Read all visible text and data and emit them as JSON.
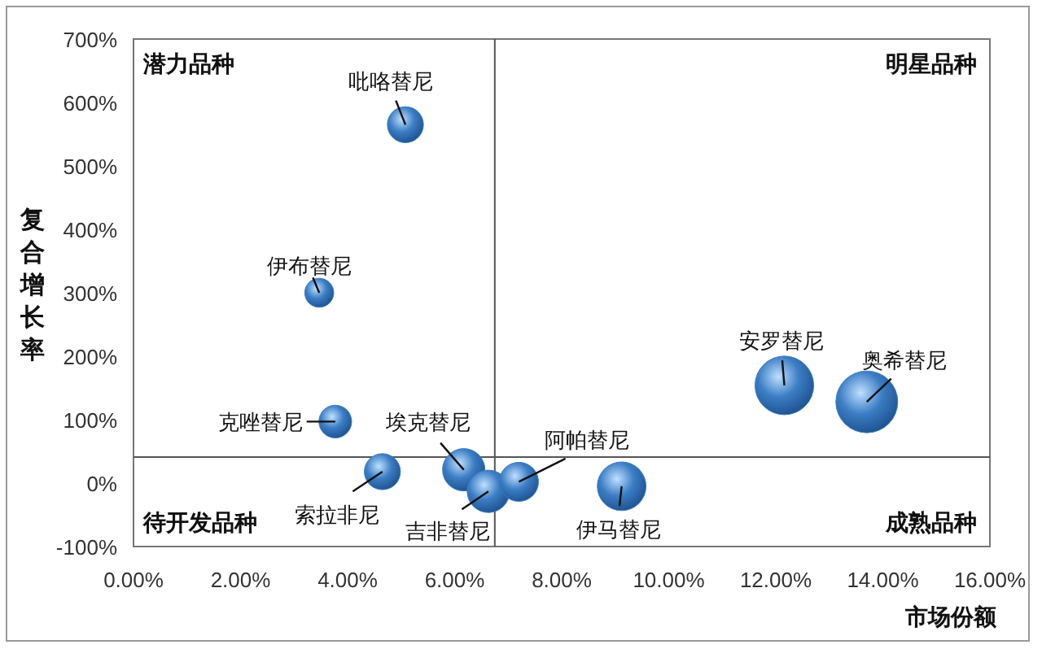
{
  "chart_data": {
    "type": "bubble",
    "xlabel": "市场份额",
    "ylabel": "复合增长率",
    "x": [
      5.08,
      3.47,
      3.77,
      4.65,
      6.17,
      6.63,
      7.2,
      9.12,
      12.16,
      13.7
    ],
    "series": [
      {
        "color": "#3b7dc4",
        "values": [
          565,
          300,
          97,
          18,
          21,
          -13,
          2,
          -5,
          154,
          128
        ],
        "sizes": [
          0.34,
          0.22,
          0.28,
          0.34,
          0.47,
          0.47,
          0.4,
          0.62,
          0.9,
          1
        ]
      }
    ],
    "xlim": [
      0,
      16
    ],
    "ylim": [
      -100,
      700
    ],
    "xticks": [
      {
        "value": 0,
        "label": "0.00%"
      },
      {
        "value": 2,
        "label": "2.00%"
      },
      {
        "value": 4,
        "label": "4.00%"
      },
      {
        "value": 6,
        "label": "6.00%"
      },
      {
        "value": 8,
        "label": "8.00%"
      },
      {
        "value": 10,
        "label": "10.00%"
      },
      {
        "value": 12,
        "label": "12.00%"
      },
      {
        "value": 14,
        "label": "14.00%"
      },
      {
        "value": 16,
        "label": "16.00%"
      }
    ],
    "yticks": [
      {
        "value": -100,
        "label": "-100%"
      },
      {
        "value": 0,
        "label": "0%"
      },
      {
        "value": 100,
        "label": "100%"
      },
      {
        "value": 200,
        "label": "200%"
      },
      {
        "value": 300,
        "label": "300%"
      },
      {
        "value": 400,
        "label": "400%"
      },
      {
        "value": 500,
        "label": "500%"
      },
      {
        "value": 600,
        "label": "600%"
      },
      {
        "value": 700,
        "label": "700%"
      }
    ],
    "ref_lines": [
      {
        "axis": "x",
        "value": 6.75,
        "color": "#555555"
      },
      {
        "axis": "y",
        "value": 41,
        "color": "#555555"
      }
    ],
    "annotations": [
      {
        "text": "吡咯替尼",
        "x": 5.08,
        "y": 565
      },
      {
        "text": "伊布替尼",
        "x": 3.47,
        "y": 300
      },
      {
        "text": "克唑替尼",
        "x": 3.77,
        "y": 97
      },
      {
        "text": "索拉非尼",
        "x": 4.65,
        "y": 18
      },
      {
        "text": "埃克替尼",
        "x": 6.17,
        "y": 21
      },
      {
        "text": "吉非替尼",
        "x": 6.63,
        "y": -13
      },
      {
        "text": "阿帕替尼",
        "x": 7.2,
        "y": 2
      },
      {
        "text": "伊马替尼",
        "x": 9.12,
        "y": -5
      },
      {
        "text": "安罗替尼",
        "x": 12.16,
        "y": 154
      },
      {
        "text": "奥希替尼",
        "x": 13.7,
        "y": 128
      },
      "潜力品种",
      "明星品种",
      "待开发品种",
      "成熟品种"
    ],
    "grid": false
  }
}
